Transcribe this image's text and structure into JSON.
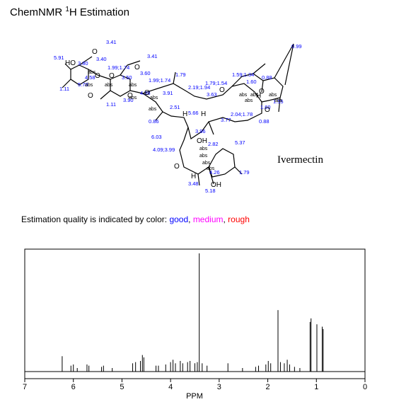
{
  "title": {
    "prefix": "ChemNMR ",
    "sup": "1",
    "rest": "H Estimation"
  },
  "molecule_name": "Ivermectin",
  "quality": {
    "prefix": "Estimation quality is indicated by color: ",
    "good": "good",
    "sep1": ", ",
    "medium": "medium",
    "sep2": ", ",
    "rough": "rough"
  },
  "colors": {
    "good": "#0000ff",
    "medium": "#ff00ff",
    "rough": "#ff0000",
    "spectrum": "#000000"
  },
  "shift_labels": [
    "3.41",
    "5.91",
    "3.40",
    "3.80",
    "1.99;1.74",
    "4.58",
    "3.50",
    "3.60",
    "3.41",
    "1.99;1.74",
    "5.70",
    "1.11",
    "3.90",
    "1.11",
    "4.58",
    "3.91",
    "1.79",
    "2.19;1.94",
    "1.79;1.54",
    "1.59;1.34",
    "1.60",
    "0.88",
    "0.99",
    "1.55",
    "1.60",
    "0.88",
    "2.51",
    "0.86",
    "5.66",
    "3.63",
    "2.04;1.78",
    "3.77",
    "6.03",
    "3.96",
    "4.09;3.99",
    "2.82",
    "5.37",
    "4.26",
    "1.79",
    "3.48",
    "5.18"
  ],
  "atom_labels": [
    "O",
    "O",
    "HO",
    "O",
    "O",
    "O",
    "O",
    "O",
    "O",
    "O",
    "O",
    "H",
    "H",
    "H",
    "OH",
    "OH",
    "H",
    "O"
  ],
  "stereo_labels": [
    "abs"
  ],
  "chart_data": {
    "type": "line",
    "xlabel": "PPM",
    "xlim": [
      7,
      0
    ],
    "x_ticks": [
      7,
      6,
      5,
      4,
      3,
      2,
      1,
      0
    ],
    "peaks": [
      {
        "x": 6.23,
        "y": 0.13
      },
      {
        "x": 6.05,
        "y": 0.05
      },
      {
        "x": 6.0,
        "y": 0.06
      },
      {
        "x": 5.92,
        "y": 0.03
      },
      {
        "x": 5.72,
        "y": 0.06
      },
      {
        "x": 5.68,
        "y": 0.05
      },
      {
        "x": 5.42,
        "y": 0.04
      },
      {
        "x": 5.38,
        "y": 0.05
      },
      {
        "x": 5.2,
        "y": 0.03
      },
      {
        "x": 4.78,
        "y": 0.07
      },
      {
        "x": 4.72,
        "y": 0.08
      },
      {
        "x": 4.62,
        "y": 0.09
      },
      {
        "x": 4.58,
        "y": 0.14
      },
      {
        "x": 4.55,
        "y": 0.12
      },
      {
        "x": 4.3,
        "y": 0.05
      },
      {
        "x": 4.25,
        "y": 0.05
      },
      {
        "x": 4.1,
        "y": 0.06
      },
      {
        "x": 4.0,
        "y": 0.08
      },
      {
        "x": 3.95,
        "y": 0.1
      },
      {
        "x": 3.9,
        "y": 0.07
      },
      {
        "x": 3.8,
        "y": 0.09
      },
      {
        "x": 3.75,
        "y": 0.07
      },
      {
        "x": 3.65,
        "y": 0.08
      },
      {
        "x": 3.6,
        "y": 0.09
      },
      {
        "x": 3.5,
        "y": 0.07
      },
      {
        "x": 3.45,
        "y": 0.08
      },
      {
        "x": 3.41,
        "y": 1.0
      },
      {
        "x": 3.35,
        "y": 0.07
      },
      {
        "x": 3.25,
        "y": 0.05
      },
      {
        "x": 2.82,
        "y": 0.07
      },
      {
        "x": 2.52,
        "y": 0.03
      },
      {
        "x": 2.25,
        "y": 0.04
      },
      {
        "x": 2.19,
        "y": 0.05
      },
      {
        "x": 2.04,
        "y": 0.06
      },
      {
        "x": 1.99,
        "y": 0.09
      },
      {
        "x": 1.94,
        "y": 0.07
      },
      {
        "x": 1.79,
        "y": 0.52
      },
      {
        "x": 1.74,
        "y": 0.08
      },
      {
        "x": 1.66,
        "y": 0.07
      },
      {
        "x": 1.6,
        "y": 0.1
      },
      {
        "x": 1.55,
        "y": 0.06
      },
      {
        "x": 1.45,
        "y": 0.04
      },
      {
        "x": 1.34,
        "y": 0.03
      },
      {
        "x": 1.13,
        "y": 0.42
      },
      {
        "x": 1.11,
        "y": 0.45
      },
      {
        "x": 0.99,
        "y": 0.4
      },
      {
        "x": 0.88,
        "y": 0.38
      },
      {
        "x": 0.86,
        "y": 0.36
      }
    ]
  }
}
